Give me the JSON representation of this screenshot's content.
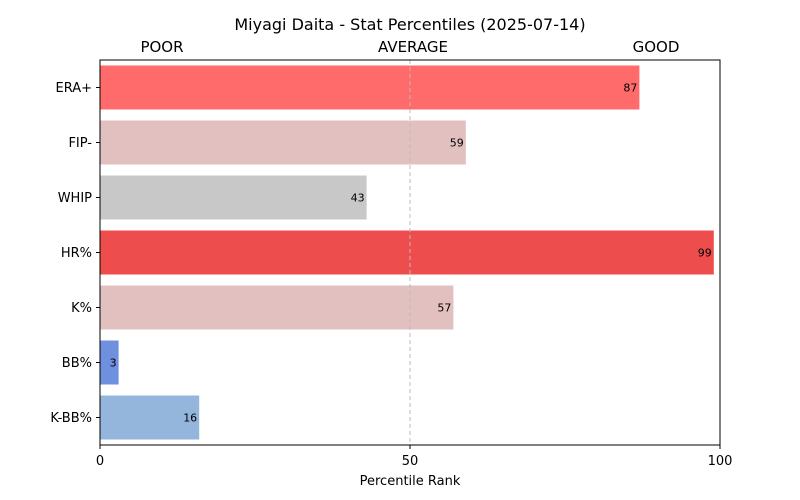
{
  "chart_data": {
    "type": "bar",
    "orientation": "horizontal",
    "title": "Miyagi Daita - Stat Percentiles (2025-07-14)",
    "xlabel": "Percentile Rank",
    "ylabel": "",
    "xlim": [
      0,
      100
    ],
    "xticks": [
      0,
      50,
      100
    ],
    "zone_labels": [
      "POOR",
      "AVERAGE",
      "GOOD"
    ],
    "reference_line": 50,
    "grid": false,
    "categories": [
      "ERA+",
      "FIP-",
      "WHIP",
      "HR%",
      "K%",
      "BB%",
      "K-BB%"
    ],
    "values": [
      87,
      59,
      43,
      99,
      57,
      3,
      16
    ],
    "colors": [
      "#ff6b6b",
      "#e3c0c0",
      "#c8c8c8",
      "#ee4d4d",
      "#e3c0c0",
      "#6f8fdf",
      "#94b6dc"
    ]
  }
}
